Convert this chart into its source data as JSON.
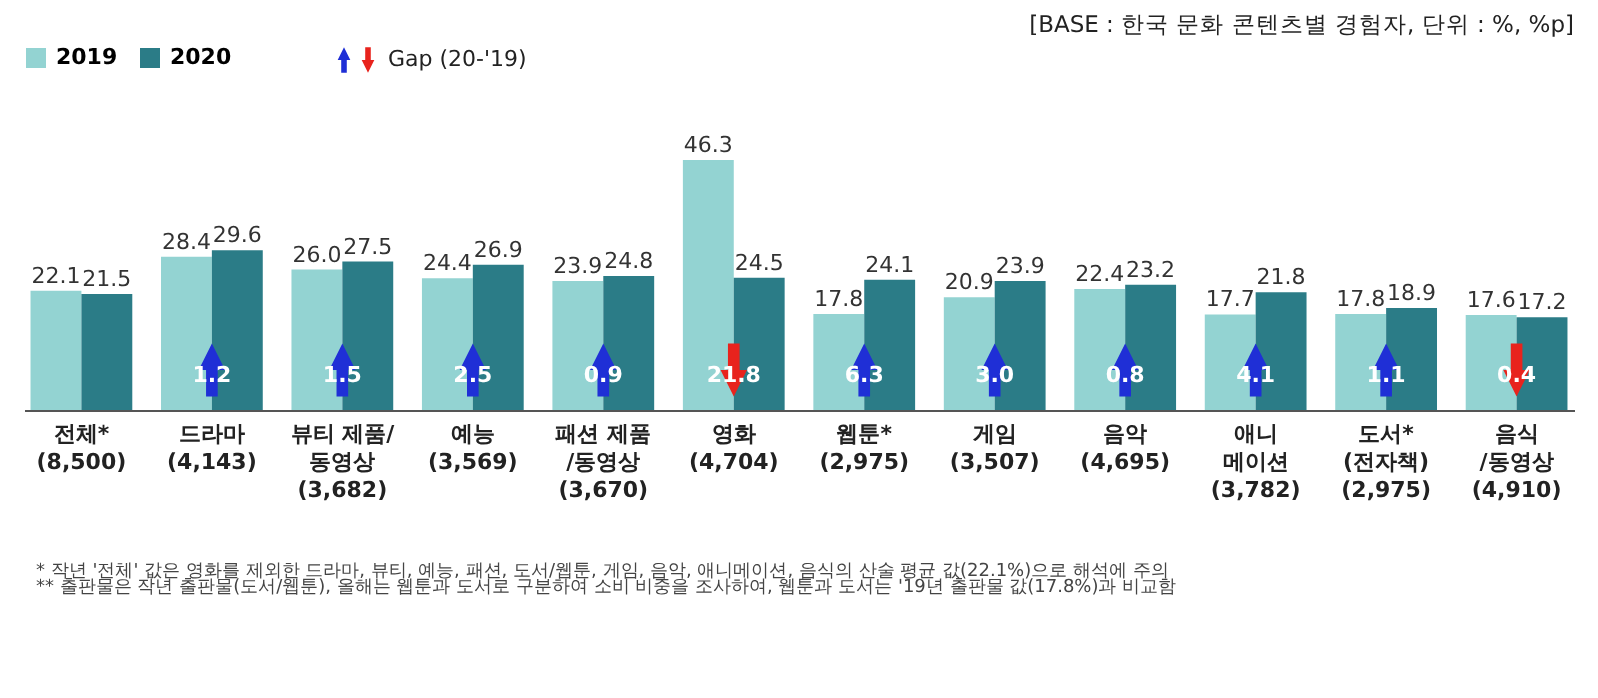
{
  "chart_data": {
    "type": "bar",
    "title": "[BASE : 한국 문화 콘텐츠별 경험자, 단위 : %, %p]",
    "categories": [
      "전체*\n(8,500)",
      "드라마\n(4,143)",
      "뷰티 제품/\n동영상\n(3,682)",
      "예능\n(3,569)",
      "패션 제품\n/동영상\n(3,670)",
      "영화\n(4,704)",
      "웹툰*\n(2,975)",
      "게임\n(3,507)",
      "음악\n(4,695)",
      "애니\n메이션\n(3,782)",
      "도서*\n(전자책)\n(2,975)",
      "음식\n/동영상\n(4,910)"
    ],
    "series": [
      {
        "name": "2019",
        "color": "#93d3d2",
        "values": [
          22.1,
          28.4,
          26.0,
          24.4,
          23.9,
          46.3,
          17.8,
          20.9,
          22.4,
          17.7,
          17.8,
          17.6
        ],
        "value_labels": [
          "22.1",
          "28.4",
          "26.0",
          "24.4",
          "23.9",
          "46.3",
          "17.8",
          "20.9",
          "22.4",
          "17.7",
          "17.8",
          "17.6"
        ]
      },
      {
        "name": "2020",
        "color": "#2b7c87",
        "values": [
          21.5,
          29.6,
          27.5,
          26.9,
          24.8,
          24.5,
          24.1,
          23.9,
          23.2,
          21.8,
          18.9,
          17.2
        ],
        "value_labels": [
          "21.5",
          "29.6",
          "27.5",
          "26.9",
          "24.8",
          "24.5",
          "24.1",
          "23.9",
          "23.2",
          "21.8",
          "18.9",
          "17.2"
        ]
      }
    ],
    "legend": "top left",
    "grid": false,
    "annotations": [
      "Gap (20-'19)",
      "* 작년 '전체' 값은 영화를 제외한 드라마, 뷰티, 예능, 패션, 도서/웹툰, 게임, 음악, 애니메이션, 음식의 산술 평균 값(22.1%)으로 해석에 주의",
      "** 출판물은 작년 출판물(도서/웹툰), 올해는 웹툰과 도서로 구분하여 소비 비중을 조사하여, 웹툰과 도서는 '19년 출판물 값(17.8%)과 비교함",
      "1.2",
      "1.5",
      "2.5",
      "0.9",
      "21.8",
      "6.3",
      "3.0",
      "0.8",
      "4.1",
      "1.1",
      "0.4"
    ]
  }
}
